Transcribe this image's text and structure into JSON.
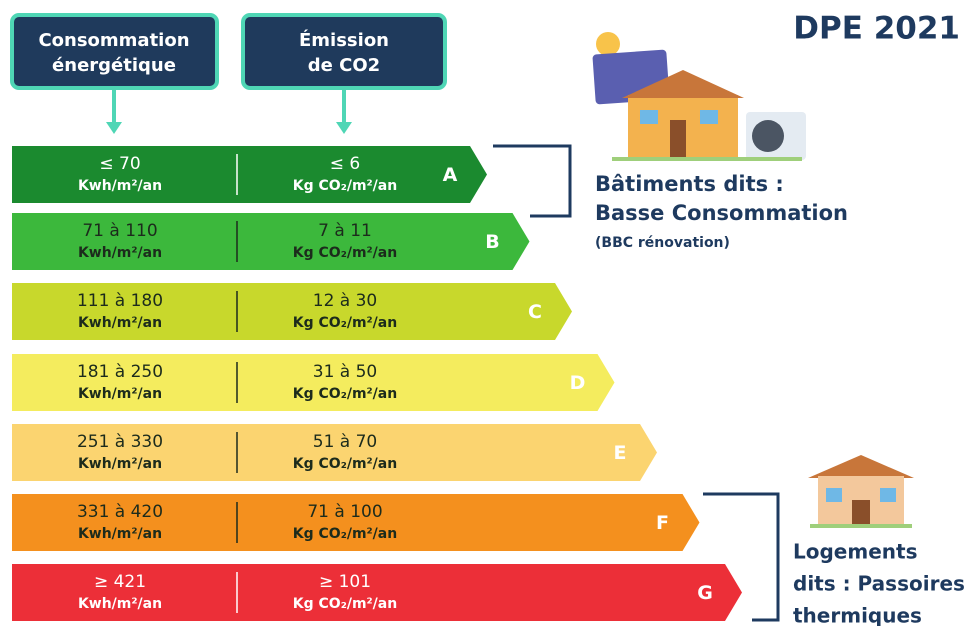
{
  "title": "DPE 2021",
  "headers": [
    {
      "lines": [
        "Consommation",
        "énergétique"
      ]
    },
    {
      "lines": [
        "Émission",
        "de CO2"
      ]
    }
  ],
  "classes": [
    {
      "letter": "A",
      "energy": "≤ 70",
      "energy_unit": "Kwh/m²/an",
      "emission": "≤ 6",
      "emission_unit": "Kg CO₂/m²/an",
      "color": "#1b8a2f",
      "text_color": "#ffffff"
    },
    {
      "letter": "B",
      "energy": "71 à 110",
      "energy_unit": "Kwh/m²/an",
      "emission": "7 à 11",
      "emission_unit": "Kg CO₂/m²/an",
      "color": "#3cb83c",
      "text_color": "#1c2b1c"
    },
    {
      "letter": "C",
      "energy": "111 à 180",
      "energy_unit": "Kwh/m²/an",
      "emission": "12 à 30",
      "emission_unit": "Kg CO₂/m²/an",
      "color": "#c8d82c",
      "text_color": "#1c2b1c"
    },
    {
      "letter": "D",
      "energy": "181 à 250",
      "energy_unit": "Kwh/m²/an",
      "emission": "31 à 50",
      "emission_unit": "Kg CO₂/m²/an",
      "color": "#f4ec5e",
      "text_color": "#1c2b1c"
    },
    {
      "letter": "E",
      "energy": "251 à 330",
      "energy_unit": "Kwh/m²/an",
      "emission": "51 à 70",
      "emission_unit": "Kg CO₂/m²/an",
      "color": "#fbd470",
      "text_color": "#1c2b1c"
    },
    {
      "letter": "F",
      "energy": "331 à 420",
      "energy_unit": "Kwh/m²/an",
      "emission": "71 à 100",
      "emission_unit": "Kg CO₂/m²/an",
      "color": "#f4901e",
      "text_color": "#1c2b1c"
    },
    {
      "letter": "G",
      "energy": "≥ 421",
      "energy_unit": "Kwh/m²/an",
      "emission": "≥ 101",
      "emission_unit": "Kg CO₂/m²/an",
      "color": "#ec2f38",
      "text_color": "#ffffff"
    }
  ],
  "groups": [
    {
      "lines": [
        "Bâtiments dits :",
        "Basse Consommation"
      ],
      "note": "(BBC rénovation)"
    },
    {
      "lines": [
        "Logements",
        "dits : Passoires",
        "thermiques"
      ]
    }
  ]
}
